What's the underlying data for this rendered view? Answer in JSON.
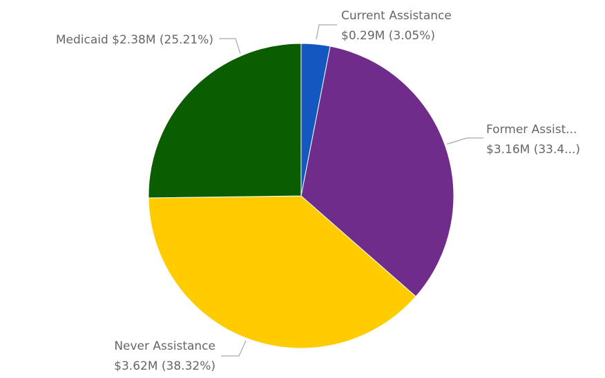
{
  "chart_data": {
    "type": "pie",
    "title": "",
    "slices": [
      {
        "name": "Current Assistance",
        "value": 0.29,
        "percent": 3.05,
        "color": "#1357c0",
        "label_line1": "Current Assistance",
        "label_line2": "$0.29M (3.05%)"
      },
      {
        "name": "Former Assistance",
        "value": 3.16,
        "percent": 33.42,
        "color": "#6f2c8a",
        "label_line1": "Former Assist...",
        "label_line2": "$3.16M (33.4...)"
      },
      {
        "name": "Never Assistance",
        "value": 3.62,
        "percent": 38.32,
        "color": "#ffcc00",
        "label_line1": "Never Assistance",
        "label_line2": "$3.62M (38.32%)"
      },
      {
        "name": "Medicaid",
        "value": 2.38,
        "percent": 25.21,
        "color": "#0b5e00",
        "label_line1": "Medicaid $2.38M (25.21%)",
        "label_line2": ""
      }
    ]
  }
}
